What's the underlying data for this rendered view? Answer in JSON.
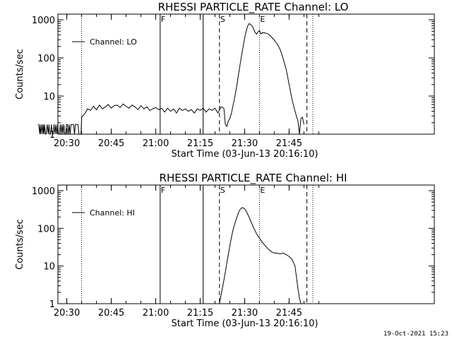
{
  "footer": {
    "timestamp": "19-Oct-2021 15:23"
  },
  "chart_data": [
    {
      "type": "line",
      "title": "RHESSI PARTICLE_RATE Channel: LO",
      "xlabel": "Start Time (03-Jun-13 20:16:10)",
      "ylabel": "Counts/sec",
      "yscale": "log",
      "ylim": [
        1,
        1000
      ],
      "xlim_minutes": [
        20.27,
        21.9
      ],
      "x_ticks": [
        "20:30",
        "20:45",
        "21:00",
        "21:15",
        "21:30",
        "21:45"
      ],
      "y_ticks": [
        "1",
        "10",
        "100",
        "1000"
      ],
      "legend": {
        "label": "Channel: LO",
        "position": "top-left"
      },
      "markers": [
        {
          "label": "",
          "time": "20:35.0",
          "style": "dotted"
        },
        {
          "label": "F",
          "time": "21:01.5",
          "style": "solid"
        },
        {
          "label": "",
          "time": "21:16.0",
          "style": "solid"
        },
        {
          "label": "S",
          "time": "21:21.5",
          "style": "dashed"
        },
        {
          "label": "E",
          "time": "21:35.0",
          "style": "dotted"
        },
        {
          "label": "",
          "time": "21:51.0",
          "style": "dashed"
        },
        {
          "label": "",
          "time": "21:53.0",
          "style": "dotted"
        }
      ],
      "series": [
        {
          "name": "Channel: LO",
          "x_min": [
            20.27,
            20.5,
            20.9,
            21.0,
            21.3,
            21.6,
            21.9,
            22.1,
            22.3,
            22.5,
            22.8,
            23.0,
            23.4,
            23.7,
            24.0,
            24.2,
            24.5,
            24.8,
            25.1,
            25.4,
            25.7,
            26.0,
            26.3,
            26.6,
            26.9,
            27.2,
            27.5,
            27.8,
            28.1,
            28.4,
            28.7,
            29.0,
            29.3,
            29.6,
            29.9,
            30.2,
            30.5,
            30.8,
            31.1,
            31.4,
            31.7,
            32.0,
            32.3,
            32.6,
            32.9,
            33.2,
            33.5,
            33.8,
            34.1,
            34.4,
            34.8,
            35.0,
            35.3,
            36,
            37,
            38,
            39,
            40,
            41,
            42,
            43,
            44,
            45,
            46,
            47,
            48,
            49,
            50,
            51,
            52,
            53,
            54,
            55,
            56,
            57,
            58,
            59,
            60,
            61,
            62,
            63,
            64,
            65,
            66,
            67,
            68,
            69,
            70,
            71,
            72,
            73,
            74,
            75,
            76,
            77,
            78,
            79,
            80,
            81,
            82,
            83,
            83.5,
            84,
            84.5,
            85,
            85.5,
            86,
            86.5,
            87,
            87.5,
            88,
            88.5,
            89,
            89.5,
            90,
            90.5,
            91,
            91.5,
            92,
            92.5,
            93,
            93.5,
            94,
            94.5,
            95,
            95.5,
            96,
            97,
            98,
            99,
            100,
            101,
            102,
            103,
            104,
            105,
            106,
            107,
            108,
            108.5,
            109,
            109.5,
            110,
            110.5,
            111,
            111.5,
            112,
            112.5
          ],
          "y": [
            1.8,
            1.8,
            1,
            1.8,
            1,
            1.8,
            1,
            1.8,
            1,
            1.8,
            1,
            1,
            1.8,
            1,
            1.8,
            1,
            1,
            1.8,
            1,
            1,
            1.8,
            1,
            1.8,
            1,
            1.8,
            1,
            1,
            1.8,
            1,
            1.8,
            1,
            1.8,
            1,
            1,
            1.8,
            1.8,
            1,
            1.8,
            1,
            1.8,
            1.8,
            1.8,
            1.8,
            1,
            1.8,
            1.8,
            1.8,
            1.8,
            1,
            1,
            1,
            2.8,
            3.0,
            3.4,
            4.6,
            4.2,
            5.4,
            4.4,
            5.8,
            4.6,
            5.2,
            6.0,
            4.8,
            5.6,
            5.8,
            5.0,
            6.2,
            5.4,
            4.8,
            5.8,
            5.2,
            4.4,
            5.6,
            4.6,
            5.2,
            4.2,
            4.6,
            5.0,
            4.4,
            4.8,
            3.8,
            4.8,
            4.0,
            4.6,
            3.6,
            4.8,
            4.2,
            4.6,
            4.0,
            4.4,
            3.6,
            4.6,
            4.2,
            4.8,
            3.8,
            4.6,
            4.2,
            4.8,
            3.6,
            5.2,
            4.8,
            1.8,
            1.6,
            2.2,
            2.6,
            3.4,
            5.2,
            8,
            13,
            22,
            40,
            70,
            120,
            200,
            330,
            500,
            680,
            790,
            760,
            690,
            580,
            470,
            420,
            480,
            520,
            430,
            460,
            450,
            420,
            360,
            290,
            230,
            165,
            95,
            50,
            20,
            8,
            4,
            2.2,
            1,
            2.6,
            2.8,
            1.8
          ]
        }
      ]
    },
    {
      "type": "line",
      "title": "RHESSI PARTICLE_RATE Channel: HI",
      "xlabel": "Start Time (03-Jun-13 20:16:10)",
      "ylabel": "Counts/sec",
      "yscale": "log",
      "ylim": [
        1,
        1000
      ],
      "xlim_minutes": [
        20.27,
        21.9
      ],
      "x_ticks": [
        "20:30",
        "20:45",
        "21:00",
        "21:15",
        "21:30",
        "21:45"
      ],
      "y_ticks": [
        "1",
        "10",
        "100",
        "1000"
      ],
      "legend": {
        "label": "Channel: HI",
        "position": "top-left"
      },
      "markers": [
        {
          "label": "",
          "time": "20:35.0",
          "style": "dotted"
        },
        {
          "label": "F",
          "time": "21:01.5",
          "style": "solid"
        },
        {
          "label": "",
          "time": "21:16.0",
          "style": "solid"
        },
        {
          "label": "S",
          "time": "21:21.5",
          "style": "dashed"
        },
        {
          "label": "E",
          "time": "21:35.0",
          "style": "dotted"
        },
        {
          "label": "",
          "time": "21:51.0",
          "style": "dashed"
        },
        {
          "label": "",
          "time": "21:53.0",
          "style": "dotted"
        }
      ],
      "series": [
        {
          "name": "Channel: HI",
          "x_min": [
            81.5,
            82,
            82.5,
            83,
            83.5,
            84,
            84.5,
            85,
            85.5,
            86,
            86.5,
            87,
            87.5,
            88,
            88.5,
            89,
            89.5,
            90,
            90.5,
            91,
            91.5,
            92,
            92.5,
            93,
            93.5,
            94,
            95,
            96,
            97,
            98,
            99,
            100,
            101,
            102,
            103,
            104,
            105,
            106,
            107,
            107.5,
            108,
            108.5,
            109,
            109.5,
            110
          ],
          "y": [
            1,
            1.6,
            2.6,
            4.2,
            7,
            12,
            20,
            34,
            55,
            85,
            120,
            160,
            210,
            270,
            320,
            350,
            350,
            330,
            290,
            240,
            200,
            160,
            130,
            105,
            88,
            72,
            55,
            42,
            34,
            28,
            24,
            22,
            22,
            21,
            22,
            20,
            18,
            15,
            10,
            5,
            2.5,
            1.4,
            1,
            1,
            1
          ]
        }
      ]
    }
  ]
}
